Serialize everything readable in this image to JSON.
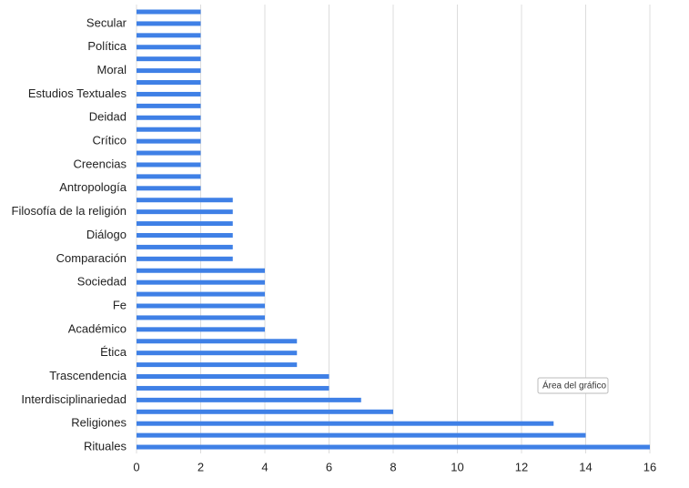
{
  "chart_data": {
    "type": "bar",
    "orientation": "horizontal",
    "categories": [
      null,
      "Secular",
      null,
      "Política",
      null,
      "Moral",
      null,
      "Estudios Textuales",
      null,
      "Deidad",
      null,
      "Crítico",
      null,
      "Creencias",
      null,
      "Antropología",
      null,
      "Filosofía de la religión",
      null,
      "Diálogo",
      null,
      "Comparación",
      null,
      "Sociedad",
      null,
      "Fe",
      null,
      "Académico",
      null,
      "Ética",
      null,
      "Trascendencia",
      null,
      "Interdisciplinariedad",
      null,
      "Religiones",
      null,
      "Rituales"
    ],
    "values": [
      2,
      2,
      2,
      2,
      2,
      2,
      2,
      2,
      2,
      2,
      2,
      2,
      2,
      2,
      2,
      2,
      3,
      3,
      3,
      3,
      3,
      3,
      4,
      4,
      4,
      4,
      4,
      4,
      5,
      5,
      5,
      6,
      6,
      7,
      8,
      13,
      14,
      16
    ],
    "color": "#3f80e6",
    "xlim": [
      0,
      16
    ],
    "xticks": [
      0,
      2,
      4,
      6,
      8,
      10,
      12,
      14,
      16
    ],
    "grid": true,
    "annotation": "Área del gráfico"
  }
}
